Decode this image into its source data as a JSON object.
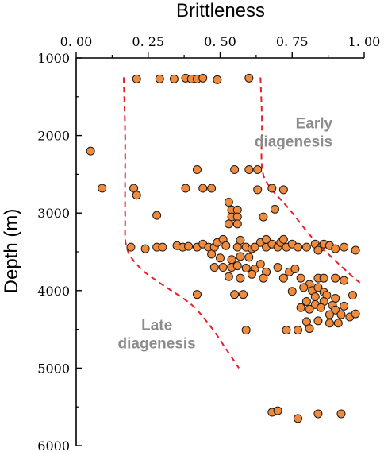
{
  "chart_data": {
    "type": "scatter",
    "xlabel": "Brittleness",
    "ylabel": "Depth (m)",
    "xlim": [
      0,
      1
    ],
    "ylim": [
      1000,
      6000
    ],
    "y_inverted": true,
    "x_axis_position": "top",
    "x_ticks": [
      0,
      0.25,
      0.5,
      0.75,
      1
    ],
    "x_tick_labels": [
      "0. 00",
      "0. 25",
      "0. 50",
      "0. 75",
      "1. 00"
    ],
    "y_ticks": [
      1000,
      2000,
      3000,
      4000,
      5000,
      6000
    ],
    "y_tick_labels": [
      "1000",
      "2000",
      "3000",
      "4000",
      "5000",
      "6000"
    ],
    "grid": false,
    "marker_color": "#f08a3c",
    "marker_edge_color": "#1a1a1a",
    "boundary_color": "#e8202a",
    "points": [
      [
        0.21,
        1270
      ],
      [
        0.29,
        1270
      ],
      [
        0.34,
        1270
      ],
      [
        0.38,
        1260
      ],
      [
        0.4,
        1270
      ],
      [
        0.42,
        1270
      ],
      [
        0.44,
        1260
      ],
      [
        0.49,
        1280
      ],
      [
        0.6,
        1260
      ],
      [
        0.05,
        2200
      ],
      [
        0.09,
        2680
      ],
      [
        0.2,
        2680
      ],
      [
        0.21,
        2770
      ],
      [
        0.38,
        2680
      ],
      [
        0.44,
        2680
      ],
      [
        0.47,
        2680
      ],
      [
        0.55,
        2440
      ],
      [
        0.6,
        2440
      ],
      [
        0.63,
        2440
      ],
      [
        0.63,
        2700
      ],
      [
        0.68,
        2680
      ],
      [
        0.72,
        2700
      ],
      [
        0.42,
        2440
      ],
      [
        0.53,
        2860
      ],
      [
        0.54,
        2960
      ],
      [
        0.56,
        2960
      ],
      [
        0.54,
        3050
      ],
      [
        0.56,
        3050
      ],
      [
        0.53,
        3140
      ],
      [
        0.56,
        3140
      ],
      [
        0.65,
        3050
      ],
      [
        0.69,
        2950
      ],
      [
        0.28,
        3030
      ],
      [
        0.19,
        3440
      ],
      [
        0.24,
        3460
      ],
      [
        0.28,
        3440
      ],
      [
        0.3,
        3440
      ],
      [
        0.35,
        3420
      ],
      [
        0.37,
        3440
      ],
      [
        0.39,
        3430
      ],
      [
        0.42,
        3440
      ],
      [
        0.44,
        3400
      ],
      [
        0.46,
        3440
      ],
      [
        0.48,
        3440
      ],
      [
        0.49,
        3380
      ],
      [
        0.51,
        3340
      ],
      [
        0.52,
        3420
      ],
      [
        0.56,
        3440
      ],
      [
        0.57,
        3350
      ],
      [
        0.59,
        3440
      ],
      [
        0.61,
        3460
      ],
      [
        0.64,
        3380
      ],
      [
        0.66,
        3440
      ],
      [
        0.68,
        3400
      ],
      [
        0.7,
        3440
      ],
      [
        0.71,
        3380
      ],
      [
        0.73,
        3440
      ],
      [
        0.75,
        3400
      ],
      [
        0.77,
        3440
      ],
      [
        0.8,
        3440
      ],
      [
        0.83,
        3400
      ],
      [
        0.85,
        3440
      ],
      [
        0.86,
        3400
      ],
      [
        0.88,
        3420
      ],
      [
        0.9,
        3460
      ],
      [
        0.93,
        3440
      ],
      [
        0.97,
        3480
      ],
      [
        0.84,
        3480
      ],
      [
        0.66,
        3340
      ],
      [
        0.72,
        3340
      ],
      [
        0.62,
        3440
      ],
      [
        0.47,
        3530
      ],
      [
        0.5,
        3580
      ],
      [
        0.54,
        3600
      ],
      [
        0.57,
        3560
      ],
      [
        0.6,
        3570
      ],
      [
        0.48,
        3700
      ],
      [
        0.51,
        3700
      ],
      [
        0.54,
        3700
      ],
      [
        0.56,
        3680
      ],
      [
        0.59,
        3710
      ],
      [
        0.62,
        3720
      ],
      [
        0.66,
        3760
      ],
      [
        0.64,
        3660
      ],
      [
        0.7,
        3700
      ],
      [
        0.74,
        3760
      ],
      [
        0.76,
        3720
      ],
      [
        0.53,
        3820
      ],
      [
        0.57,
        3840
      ],
      [
        0.61,
        3790
      ],
      [
        0.65,
        3840
      ],
      [
        0.72,
        3840
      ],
      [
        0.78,
        3840
      ],
      [
        0.81,
        3920
      ],
      [
        0.84,
        3840
      ],
      [
        0.86,
        3840
      ],
      [
        0.9,
        3840
      ],
      [
        0.93,
        3870
      ],
      [
        0.79,
        3960
      ],
      [
        0.82,
        4000
      ],
      [
        0.84,
        3960
      ],
      [
        0.86,
        4020
      ],
      [
        0.83,
        4080
      ],
      [
        0.87,
        4060
      ],
      [
        0.9,
        4100
      ],
      [
        0.8,
        4140
      ],
      [
        0.83,
        4180
      ],
      [
        0.86,
        4140
      ],
      [
        0.89,
        4190
      ],
      [
        0.93,
        4200
      ],
      [
        0.78,
        4220
      ],
      [
        0.81,
        4240
      ],
      [
        0.85,
        4220
      ],
      [
        0.9,
        4250
      ],
      [
        0.88,
        4310
      ],
      [
        0.92,
        4310
      ],
      [
        0.95,
        4340
      ],
      [
        0.97,
        4300
      ],
      [
        0.8,
        4400
      ],
      [
        0.84,
        4390
      ],
      [
        0.88,
        4420
      ],
      [
        0.91,
        4420
      ],
      [
        0.96,
        4060
      ],
      [
        0.75,
        4010
      ],
      [
        0.42,
        4050
      ],
      [
        0.55,
        4050
      ],
      [
        0.58,
        4050
      ],
      [
        0.73,
        4510
      ],
      [
        0.77,
        4510
      ],
      [
        0.81,
        4490
      ],
      [
        0.59,
        4510
      ],
      [
        0.68,
        5570
      ],
      [
        0.7,
        5550
      ],
      [
        0.77,
        5650
      ],
      [
        0.84,
        5590
      ],
      [
        0.92,
        5590
      ]
    ],
    "boundaries": [
      {
        "name": "late-boundary",
        "points": [
          [
            0.165,
            1250
          ],
          [
            0.17,
            2000
          ],
          [
            0.17,
            3000
          ],
          [
            0.175,
            3440
          ],
          [
            0.22,
            3700
          ],
          [
            0.29,
            3900
          ],
          [
            0.4,
            4180
          ],
          [
            0.47,
            4480
          ],
          [
            0.52,
            4750
          ],
          [
            0.565,
            5000
          ]
        ]
      },
      {
        "name": "early-boundary",
        "points": [
          [
            0.64,
            1250
          ],
          [
            0.645,
            1800
          ],
          [
            0.645,
            2400
          ],
          [
            0.67,
            2650
          ],
          [
            0.74,
            2950
          ],
          [
            0.82,
            3320
          ],
          [
            0.89,
            3580
          ],
          [
            0.945,
            3770
          ],
          [
            0.985,
            3900
          ]
        ]
      }
    ],
    "annotations": [
      {
        "lines": [
          "Early",
          "diagenesis"
        ],
        "x": 0.89,
        "y": 2000,
        "align": "end"
      },
      {
        "lines": [
          "Late",
          "diagenesis"
        ],
        "x": 0.28,
        "y": 4600,
        "align": "middle"
      }
    ]
  }
}
